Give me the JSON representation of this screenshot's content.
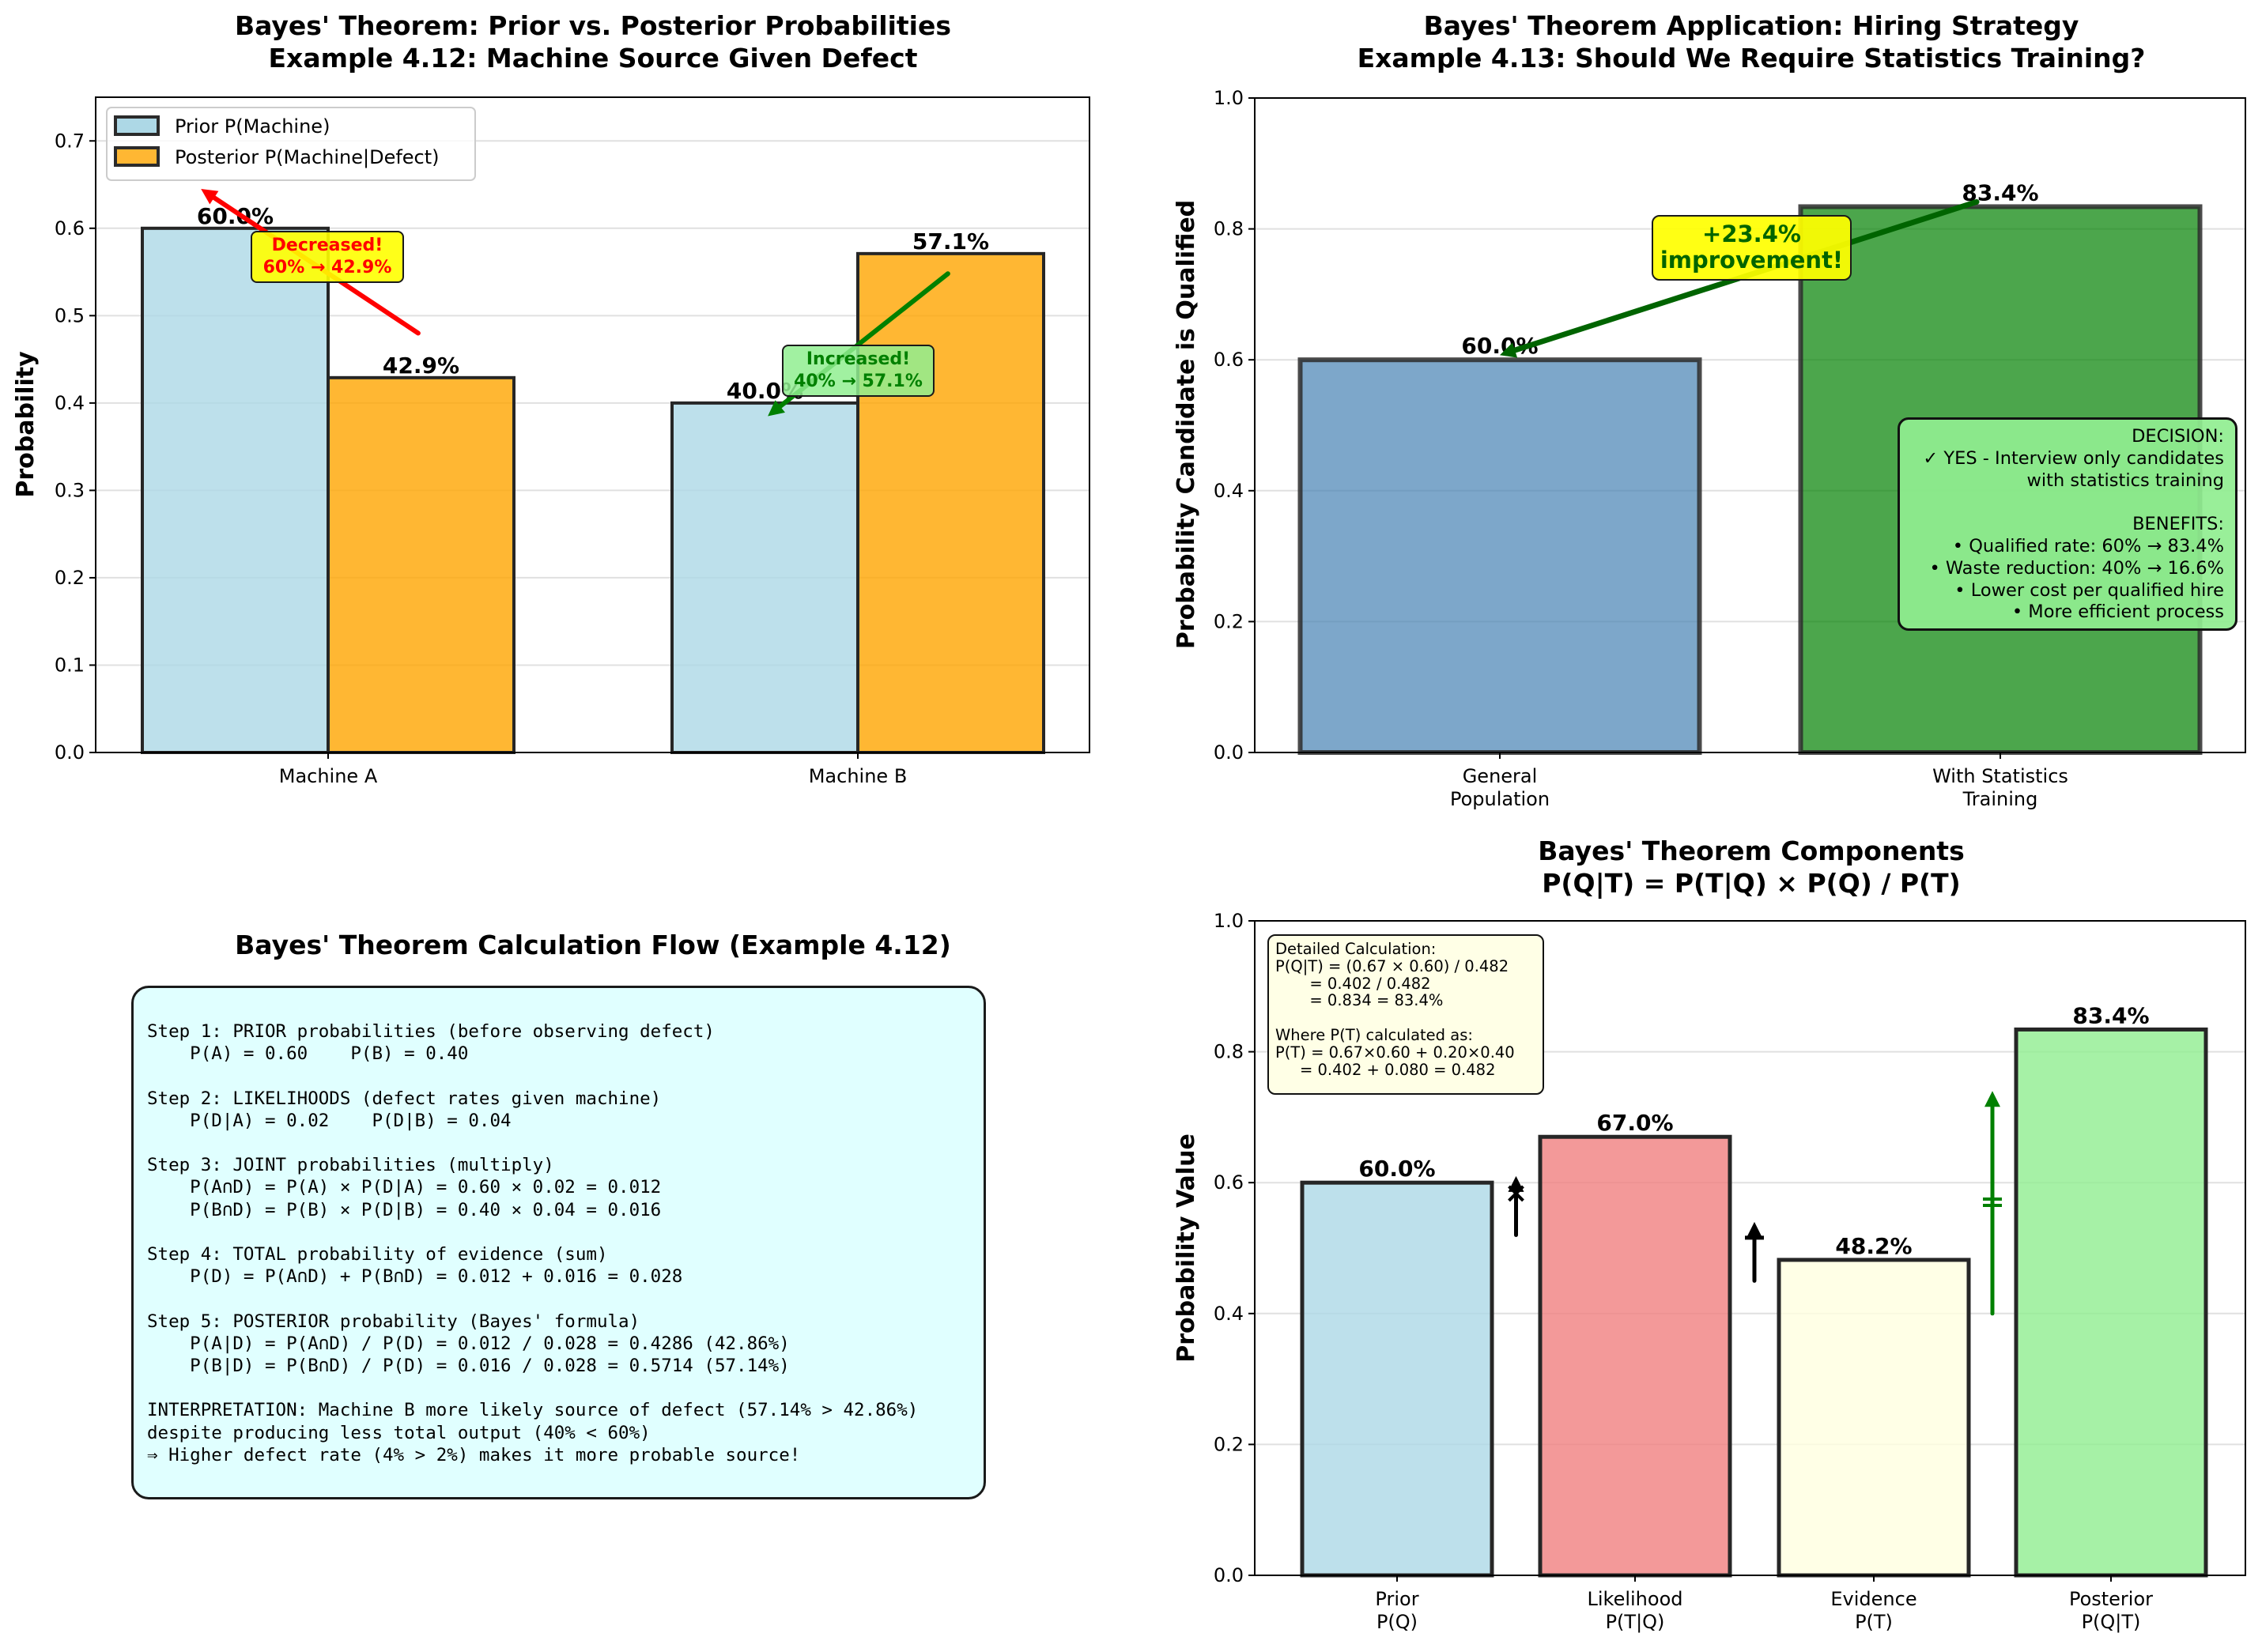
{
  "figure": {
    "panel_bottom_left": {
      "title": "Bayes' Theorem Calculation Flow (Example 4.12)",
      "flow_lines": [
        "Step 1: PRIOR probabilities (before observing defect)",
        "    P(A) = 0.60    P(B) = 0.40",
        "",
        "Step 2: LIKELIHOODS (defect rates given machine)",
        "    P(D|A) = 0.02    P(D|B) = 0.04",
        "",
        "Step 3: JOINT probabilities (multiply)",
        "    P(A∩D) = P(A) × P(D|A) = 0.60 × 0.02 = 0.012",
        "    P(B∩D) = P(B) × P(D|B) = 0.40 × 0.04 = 0.016",
        "",
        "Step 4: TOTAL probability of evidence (sum)",
        "    P(D) = P(A∩D) + P(B∩D) = 0.012 + 0.016 = 0.028",
        "",
        "Step 5: POSTERIOR probability (Bayes' formula)",
        "    P(A|D) = P(A∩D) / P(D) = 0.012 / 0.028 = 0.4286 (42.86%)",
        "    P(B|D) = P(B∩D) / P(D) = 0.016 / 0.028 = 0.5714 (57.14%)",
        "",
        "INTERPRETATION: Machine B more likely source of defect (57.14% > 42.86%)",
        "despite producing less total output (40% < 60%)",
        "⇒ Higher defect rate (4% > 2%) makes it more probable source!"
      ],
      "box_color": "#e0ffff"
    }
  },
  "chart_data": [
    {
      "id": "machine",
      "type": "bar",
      "title": "Bayes' Theorem: Prior vs. Posterior Probabilities",
      "subtitle": "Example 4.12: Machine Source Given Defect",
      "xlabel": "",
      "ylabel": "Probability",
      "categories": [
        "Machine A",
        "Machine B"
      ],
      "series": [
        {
          "name": "Prior P(Machine)",
          "values": [
            0.6,
            0.4
          ],
          "labels": [
            "60.0%",
            "40.0%"
          ],
          "color": "#add8e6"
        },
        {
          "name": "Posterior P(Machine|Defect)",
          "values": [
            0.429,
            0.571
          ],
          "labels": [
            "42.9%",
            "57.1%"
          ],
          "color": "#ffa500"
        }
      ],
      "ylim": [
        0,
        0.75
      ],
      "yticks": [
        "0.0",
        "0.1",
        "0.2",
        "0.3",
        "0.4",
        "0.5",
        "0.6",
        "0.7"
      ],
      "ytick_values": [
        0,
        0.1,
        0.2,
        0.3,
        0.4,
        0.5,
        0.6,
        0.7
      ],
      "grid": "y",
      "legend_position": "top-left",
      "annotations": [
        {
          "text": "Decreased!\n60% → 42.9%",
          "color": "#ff0000",
          "box_color": "#ffff00",
          "arrow_from": [
            0.17,
            0.48
          ],
          "arrow_to": [
            -0.24,
            0.645
          ]
        },
        {
          "text": "Increased!\n40% → 57.1%",
          "color": "#008000",
          "box_color": "#90ee90",
          "arrow_from": [
            1.17,
            0.548
          ],
          "arrow_to": [
            0.83,
            0.385
          ]
        }
      ]
    },
    {
      "id": "hiring",
      "type": "bar",
      "title": "Bayes' Theorem Application: Hiring Strategy",
      "subtitle": "Example 4.13: Should We Require Statistics Training?",
      "xlabel": "",
      "ylabel": "Probability Candidate is Qualified",
      "categories": [
        "General\nPopulation",
        "With Statistics\nTraining"
      ],
      "values": [
        0.6,
        0.834
      ],
      "labels": [
        "60.0%",
        "83.4%"
      ],
      "colors": [
        "#4682b4",
        "#008000"
      ],
      "ylim": [
        0,
        1.0
      ],
      "yticks": [
        "0.0",
        "0.2",
        "0.4",
        "0.6",
        "0.8",
        "1.0"
      ],
      "ytick_values": [
        0,
        0.2,
        0.4,
        0.6,
        0.8,
        1.0
      ],
      "grid": "y",
      "annotations": [
        {
          "text": "+23.4%\nimprovement!",
          "color": "#006400",
          "box_color": "#ffff00",
          "arrow_from": [
            1.0,
            0.834
          ],
          "arrow_to": [
            0.0,
            0.6
          ]
        }
      ],
      "decision_box": {
        "lines": [
          "DECISION:",
          "✓ YES - Interview only candidates",
          "with statistics training",
          "",
          "BENEFITS:",
          "• Qualified rate: 60% → 83.4%",
          "• Waste reduction: 40% → 16.6%",
          "• Lower cost per qualified hire",
          "• More efficient process"
        ],
        "box_color": "#90ee90"
      }
    },
    {
      "id": "components",
      "type": "bar",
      "title": "Bayes' Theorem Components",
      "subtitle": "P(Q|T) = P(T|Q) × P(Q) / P(T)",
      "xlabel": "",
      "ylabel": "Probability Value",
      "categories": [
        "Prior\nP(Q)",
        "Likelihood\nP(T|Q)",
        "Evidence\nP(T)",
        "Posterior\nP(Q|T)"
      ],
      "values": [
        0.6,
        0.67,
        0.482,
        0.834
      ],
      "labels": [
        "60.0%",
        "67.0%",
        "48.2%",
        "83.4%"
      ],
      "colors": [
        "#add8e6",
        "#f08080",
        "#ffffe0",
        "#90ee90"
      ],
      "ylim": [
        0,
        1.0
      ],
      "yticks": [
        "0.0",
        "0.2",
        "0.4",
        "0.6",
        "0.8",
        "1.0"
      ],
      "ytick_values": [
        0,
        0.2,
        0.4,
        0.6,
        0.8,
        1.0
      ],
      "grid": "y",
      "operators": [
        {
          "symbol": "×",
          "between": [
            0,
            1
          ],
          "from": 0.52,
          "to": 0.61,
          "color": "#000000"
        },
        {
          "symbol": "÷",
          "between": [
            1,
            2
          ],
          "from": 0.45,
          "to": 0.54,
          "color": "#000000"
        },
        {
          "symbol": "=",
          "between": [
            2,
            3
          ],
          "from": 0.4,
          "to": 0.74,
          "color": "#008000"
        }
      ],
      "calc_box": {
        "lines": [
          "Detailed Calculation:",
          "P(Q|T) = (0.67 × 0.60) / 0.482",
          "       = 0.402 / 0.482",
          "       = 0.834 = 83.4%",
          "",
          "Where P(T) calculated as:",
          "P(T) = 0.67×0.60 + 0.20×0.40",
          "     = 0.402 + 0.080 = 0.482"
        ],
        "box_color": "#ffffe0"
      }
    }
  ]
}
